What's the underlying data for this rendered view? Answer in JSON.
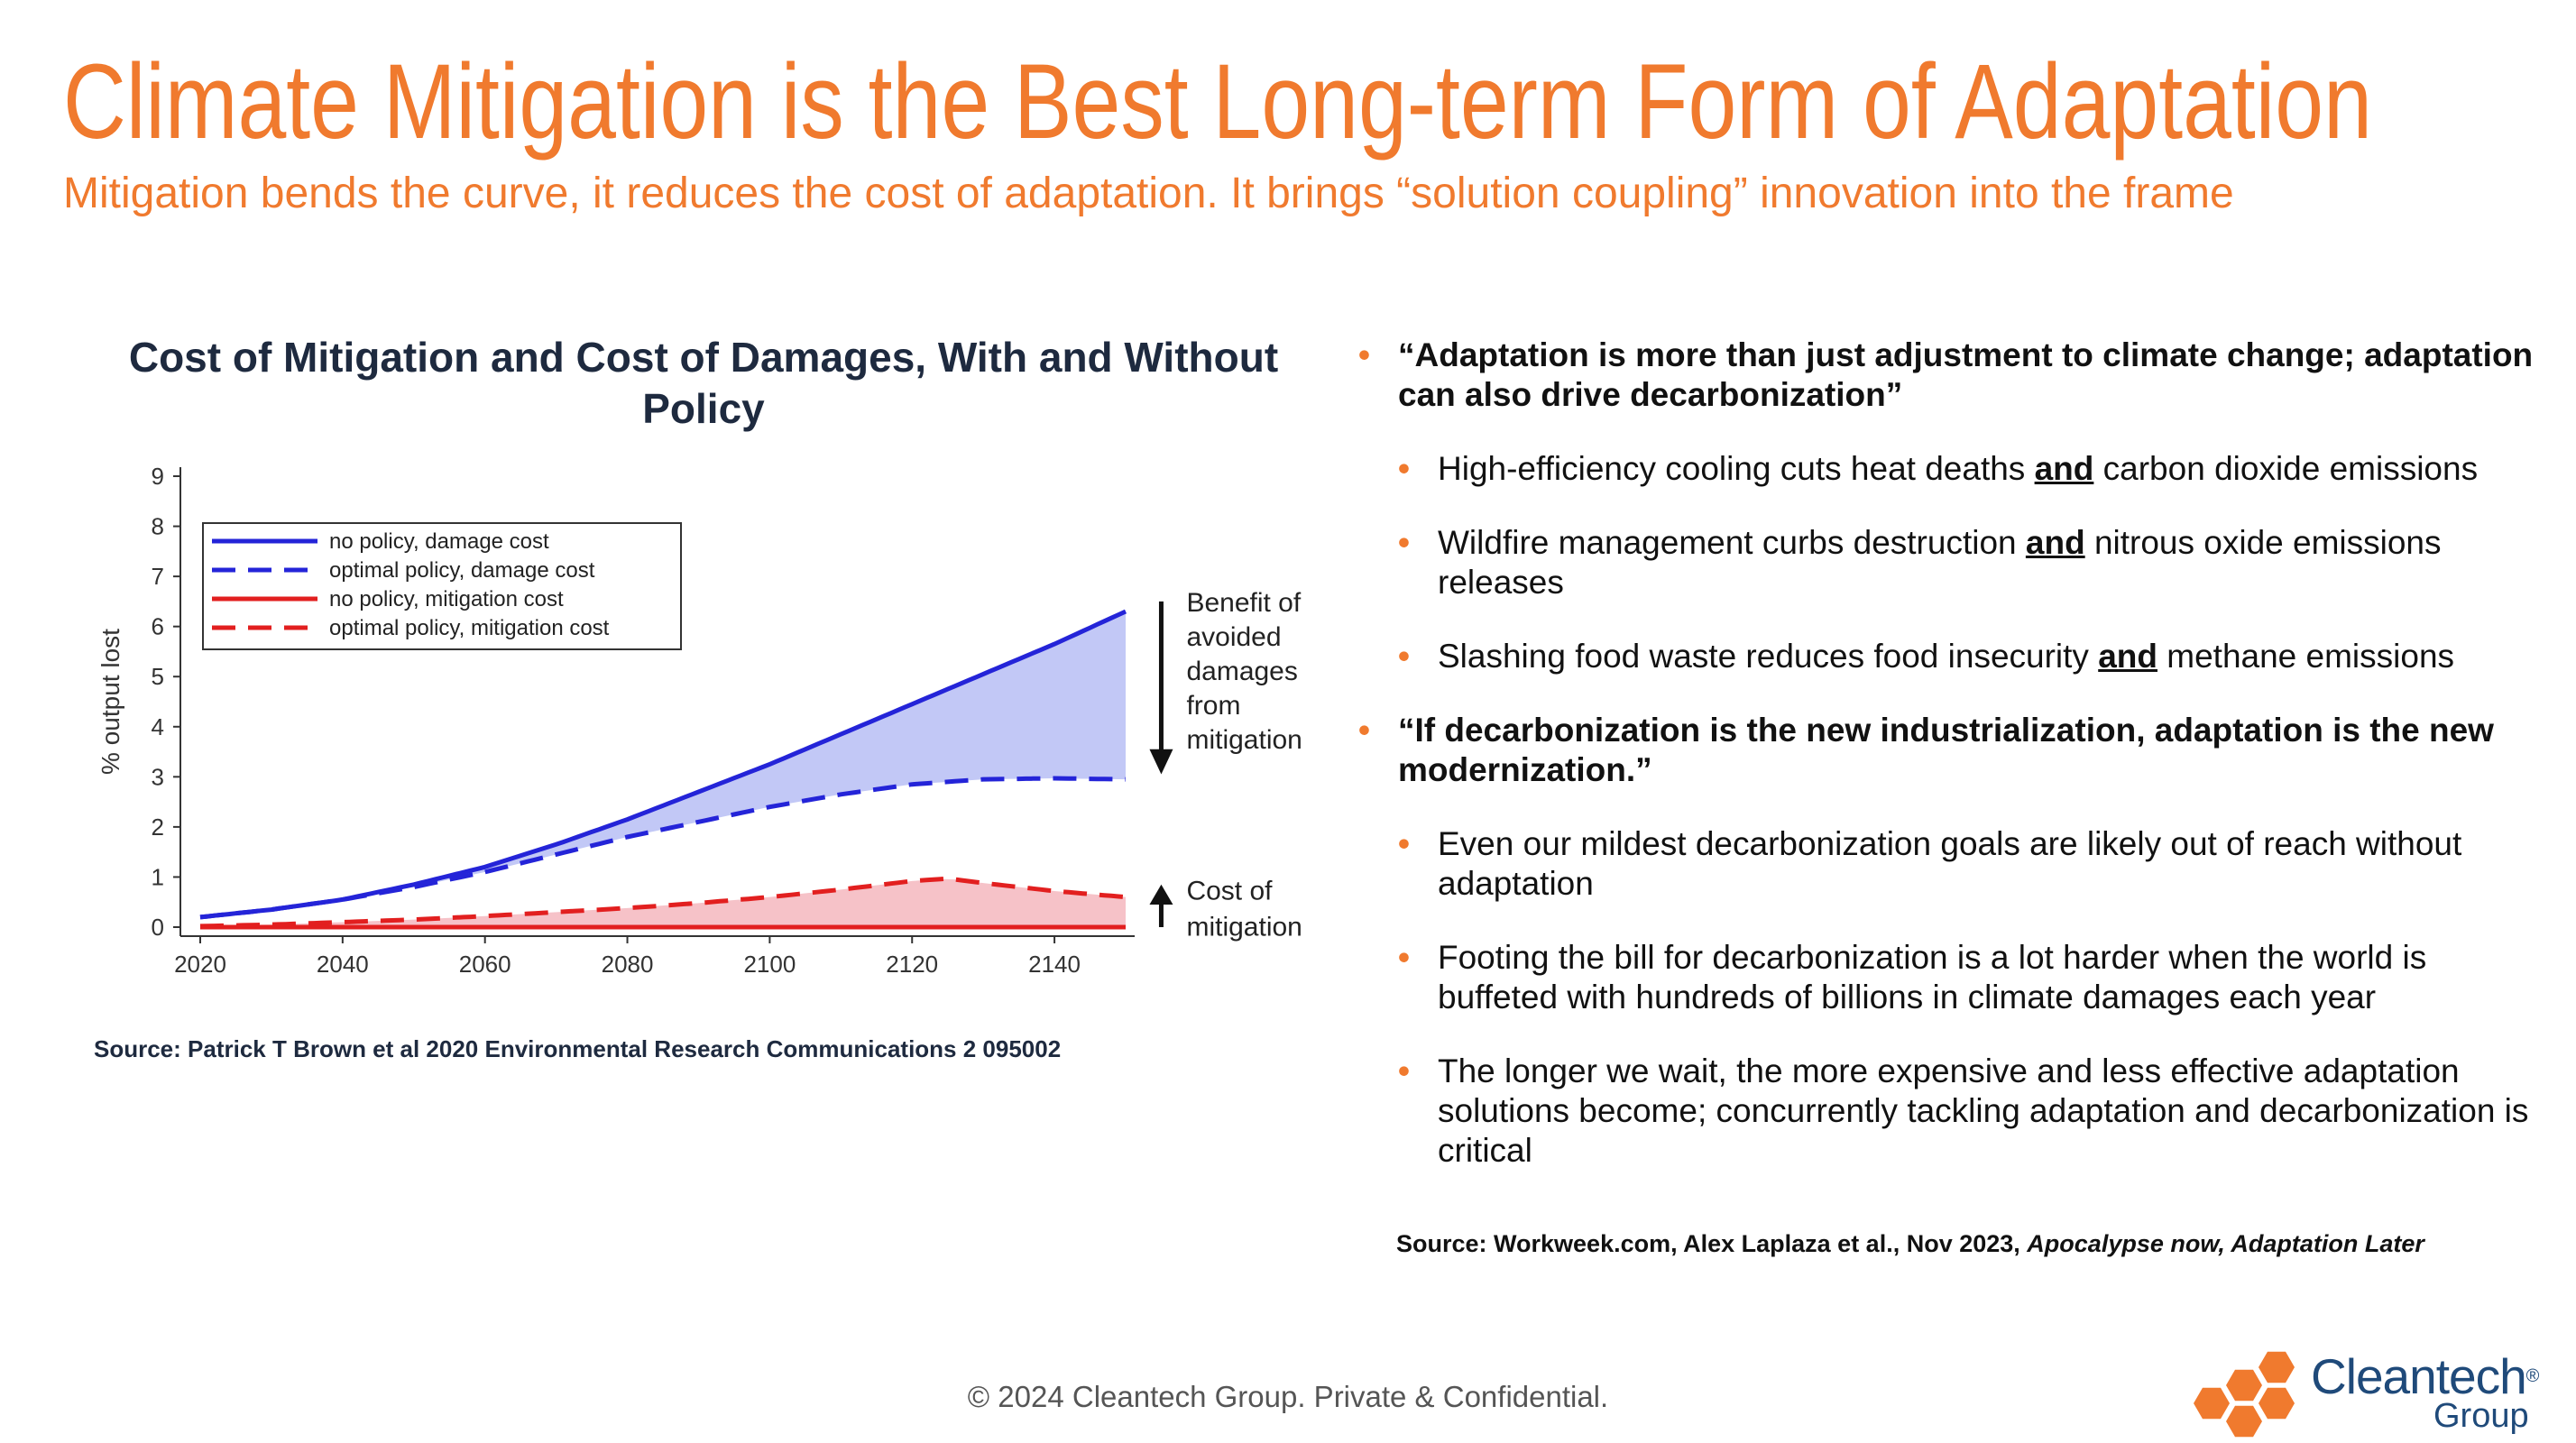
{
  "header": {
    "title": "Climate Mitigation is the Best Long-term Form of Adaptation",
    "subtitle": "Mitigation bends the curve, it reduces the cost of adaptation. It brings “solution coupling” innovation into the frame"
  },
  "chart_title": "Cost of Mitigation and Cost of Damages, With and Without Policy",
  "chart_source": "Source: Patrick T Brown et al 2020 Environmental Research Communications 2 095002",
  "chart_data": {
    "type": "line",
    "xlabel": "",
    "ylabel": "% output lost",
    "xlim": [
      2020,
      2150
    ],
    "ylim": [
      0,
      9
    ],
    "x_ticks": [
      2020,
      2040,
      2060,
      2080,
      2100,
      2120,
      2140
    ],
    "y_ticks": [
      0,
      1,
      2,
      3,
      4,
      5,
      6,
      7,
      8,
      9
    ],
    "legend_position": "top-left",
    "series": [
      {
        "name": "no policy, damage cost",
        "style": "solid",
        "color": "#2424d8",
        "x": [
          2020,
          2030,
          2040,
          2050,
          2060,
          2070,
          2080,
          2090,
          2100,
          2110,
          2120,
          2130,
          2140,
          2150
        ],
        "y": [
          0.2,
          0.35,
          0.55,
          0.85,
          1.2,
          1.65,
          2.15,
          2.7,
          3.25,
          3.85,
          4.45,
          5.05,
          5.65,
          6.3
        ]
      },
      {
        "name": "optimal policy, damage cost",
        "style": "dashed",
        "color": "#2424d8",
        "x": [
          2020,
          2030,
          2040,
          2050,
          2060,
          2070,
          2080,
          2090,
          2100,
          2110,
          2120,
          2130,
          2140,
          2150
        ],
        "y": [
          0.2,
          0.35,
          0.55,
          0.8,
          1.1,
          1.45,
          1.8,
          2.1,
          2.4,
          2.65,
          2.85,
          2.95,
          2.97,
          2.95
        ]
      },
      {
        "name": "no policy, mitigation cost",
        "style": "solid",
        "color": "#e21f1f",
        "x": [
          2020,
          2150
        ],
        "y": [
          0,
          0
        ]
      },
      {
        "name": "optimal policy, mitigation cost",
        "style": "dashed",
        "color": "#e21f1f",
        "x": [
          2020,
          2030,
          2040,
          2050,
          2060,
          2070,
          2080,
          2090,
          2100,
          2110,
          2120,
          2125,
          2130,
          2140,
          2150
        ],
        "y": [
          0.02,
          0.05,
          0.1,
          0.15,
          0.22,
          0.3,
          0.38,
          0.48,
          0.6,
          0.75,
          0.92,
          0.97,
          0.88,
          0.72,
          0.6
        ]
      }
    ],
    "annotations": [
      {
        "label_lines": [
          "Benefit of",
          "avoided",
          "damages",
          "from",
          "mitigation"
        ]
      },
      {
        "label_lines": [
          "Cost of",
          "mitigation"
        ]
      }
    ],
    "colors": {
      "damage_line": "#2424d8",
      "damage_fill": "#c2c8f6",
      "mitigation_line": "#e21f1f",
      "mitigation_fill": "#f6c2c8"
    }
  },
  "bullets": [
    {
      "level": 1,
      "parts": [
        {
          "text": "“Adaptation is more than just adjustment to climate change; adaptation can also drive decarbonization”",
          "em": false
        }
      ]
    },
    {
      "level": 2,
      "parts": [
        {
          "text": "High-efficiency cooling cuts heat deaths ",
          "em": false
        },
        {
          "text": "and",
          "em": true
        },
        {
          "text": " carbon dioxide emissions",
          "em": false
        }
      ]
    },
    {
      "level": 2,
      "parts": [
        {
          "text": "Wildfire management curbs destruction ",
          "em": false
        },
        {
          "text": "and",
          "em": true
        },
        {
          "text": " nitrous oxide emissions releases",
          "em": false
        }
      ]
    },
    {
      "level": 2,
      "parts": [
        {
          "text": "Slashing food waste reduces food insecurity ",
          "em": false
        },
        {
          "text": "and",
          "em": true
        },
        {
          "text": " methane emissions",
          "em": false
        }
      ]
    },
    {
      "level": 1,
      "parts": [
        {
          "text": "“If decarbonization is the new industrialization, adaptation is the new modernization.”",
          "em": false
        }
      ]
    },
    {
      "level": 2,
      "parts": [
        {
          "text": "Even our mildest decarbonization goals are likely out of reach without adaptation",
          "em": false
        }
      ]
    },
    {
      "level": 2,
      "parts": [
        {
          "text": "Footing the bill for decarbonization is a lot harder when the world is buffeted with hundreds of billions in climate damages each year",
          "em": false
        }
      ]
    },
    {
      "level": 2,
      "parts": [
        {
          "text": "The longer we wait, the more expensive and less effective adaptation solutions become; concurrently tackling adaptation and decarbonization is critical",
          "em": false
        }
      ]
    }
  ],
  "bullet_symbol": "•",
  "source2": {
    "prefix": "Source: Workweek.com, Alex Laplaza et al., Nov 2023, ",
    "italic": "Apocalypse now, Adaptation Later"
  },
  "footer": "© 2024 Cleantech Group. Private & Confidential.",
  "logo": {
    "name": "Cleantech",
    "registered": "®",
    "sub": "Group",
    "colors": {
      "hex_orange": "#f07a2e",
      "text": "#1f4a7a"
    }
  }
}
